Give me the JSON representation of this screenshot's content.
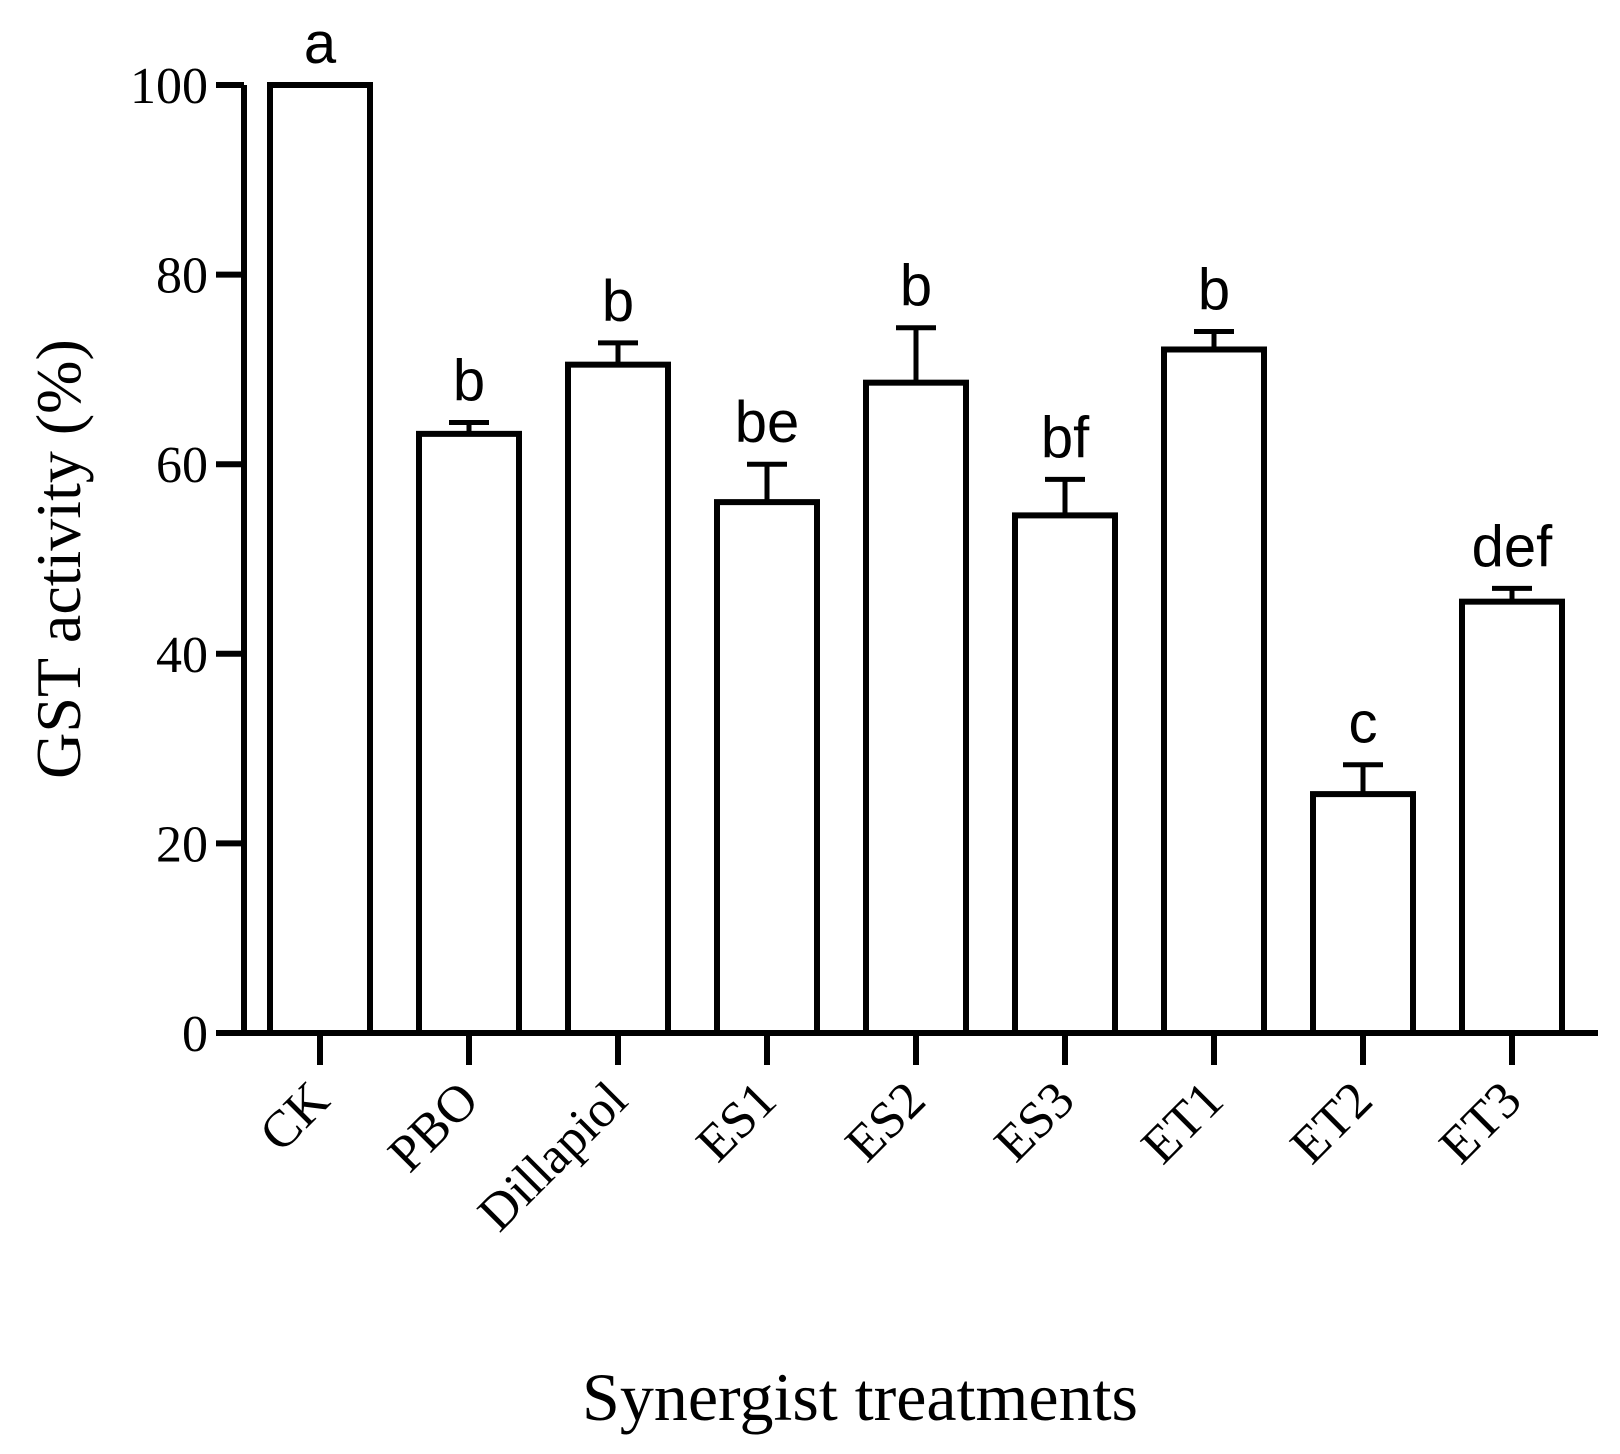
{
  "chart_data": {
    "type": "bar",
    "title": "",
    "xlabel": "Synergist treatments",
    "ylabel": "GST activity (%)",
    "ylim": [
      0,
      100
    ],
    "yticks": [
      0,
      20,
      40,
      60,
      80,
      100
    ],
    "grid": false,
    "categories": [
      "CK",
      "PBO",
      "Dillapiol",
      "ES1",
      "ES2",
      "ES3",
      "ET1",
      "ET2",
      "ET3"
    ],
    "values": [
      100,
      63.2,
      70.5,
      56,
      68.6,
      54.6,
      72.1,
      25.2,
      45.5
    ],
    "errors": [
      0,
      1.2,
      2.3,
      4,
      5.8,
      3.8,
      1.9,
      3.1,
      1.4
    ],
    "significance_labels": [
      "a",
      "b",
      "b",
      "be",
      "b",
      "bf",
      "b",
      "c",
      "def"
    ],
    "colors": {
      "bar_fill": "#ffffff",
      "stroke": "#000000"
    }
  }
}
